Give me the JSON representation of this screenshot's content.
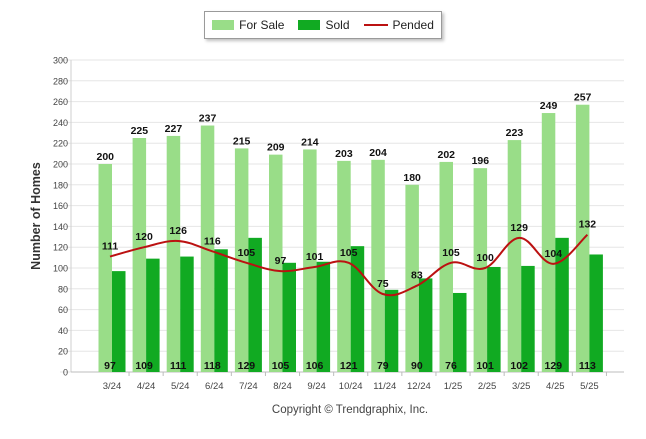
{
  "chart_data": {
    "type": "bar",
    "categories": [
      "3/24",
      "4/24",
      "5/24",
      "6/24",
      "7/24",
      "8/24",
      "9/24",
      "10/24",
      "11/24",
      "12/24",
      "1/25",
      "2/25",
      "3/25",
      "4/25",
      "5/25"
    ],
    "series": [
      {
        "name": "For Sale",
        "type": "bar",
        "color": "#99dd88",
        "values": [
          200,
          225,
          227,
          237,
          215,
          209,
          214,
          203,
          204,
          180,
          202,
          196,
          223,
          249,
          257
        ]
      },
      {
        "name": "Sold",
        "type": "bar",
        "color": "#11aa22",
        "values": [
          97,
          109,
          111,
          118,
          129,
          105,
          106,
          121,
          79,
          90,
          76,
          101,
          102,
          129,
          113
        ]
      },
      {
        "name": "Pended",
        "type": "line",
        "color": "#bb1111",
        "values": [
          111,
          120,
          126,
          116,
          105,
          97,
          101,
          105,
          75,
          83,
          105,
          100,
          129,
          104,
          132
        ]
      }
    ],
    "ylabel": "Number of Homes",
    "xlabel": "",
    "ylim": [
      0,
      300
    ],
    "yticks": [
      0,
      20,
      40,
      60,
      80,
      100,
      120,
      140,
      160,
      180,
      200,
      220,
      240,
      260,
      280,
      300
    ],
    "grid": true,
    "legend_position": "top-center"
  },
  "footer": {
    "copyright": "Copyright © Trendgraphix, Inc."
  }
}
